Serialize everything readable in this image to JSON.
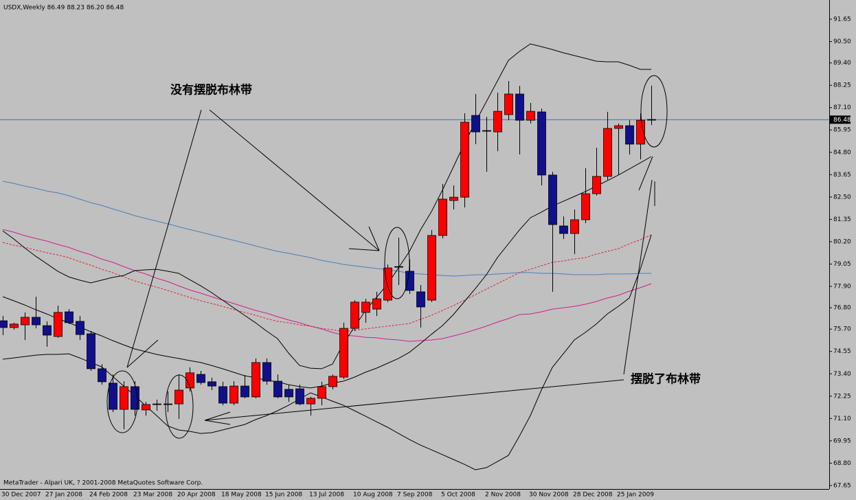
{
  "chart_data": {
    "type": "candlestick",
    "title": "USDX,Weekly  86.49 88.23 86.20 86.48",
    "footer": "MetaTrader - Alpari UK, ? 2001-2008 MetaQuotes Software Corp.",
    "annotations": [
      "没有摆脱布林带",
      "摆脱了布林带"
    ],
    "categories": [
      "30 Dec 2007",
      null,
      null,
      null,
      "27 Jan 2008",
      null,
      null,
      null,
      "24 Feb 2008",
      null,
      null,
      null,
      "23 Mar 2008",
      null,
      null,
      null,
      "20 Apr 2008",
      null,
      null,
      null,
      "18 May 2008",
      null,
      null,
      null,
      "15 Jun 2008",
      null,
      null,
      null,
      "13 Jul 2008",
      null,
      null,
      null,
      "10 Aug 2008",
      null,
      null,
      null,
      "7 Sep 2008",
      null,
      null,
      null,
      "5 Oct 2008",
      null,
      null,
      null,
      "2 Nov 2008",
      null,
      null,
      null,
      "30 Nov 2008",
      null,
      null,
      null,
      "28 Dec 2008",
      null,
      null,
      null,
      "25 Jan 2009",
      null,
      null,
      null
    ],
    "open": [
      76.13,
      75.78,
      75.92,
      76.31,
      75.88,
      75.32,
      76.59,
      76.1,
      75.46,
      73.66,
      72.92,
      71.57,
      72.74,
      71.54,
      71.82,
      71.85,
      71.85,
      72.67,
      73.37,
      72.99,
      72.74,
      71.89,
      72.77,
      72.21,
      73.98,
      73.02,
      72.6,
      72.63,
      71.85,
      72.14,
      72.74,
      73.23,
      75.74,
      76.56,
      76.73,
      77.19,
      78.92,
      78.68,
      77.62,
      77.19,
      80.52,
      82.32,
      82.49,
      86.7,
      85.92,
      85.85,
      86.74,
      87.8,
      86.45,
      86.88,
      83.63,
      81.01,
      80.62,
      81.33,
      82.67,
      83.56,
      86.03,
      86.17,
      85.22,
      86.49
    ],
    "high": [
      76.38,
      76.03,
      76.56,
      77.37,
      76.1,
      76.91,
      76.73,
      76.38,
      75.6,
      73.9,
      73.37,
      73.02,
      73.02,
      71.96,
      72.07,
      72.49,
      73.37,
      73.73,
      73.55,
      73.2,
      72.99,
      73.02,
      73.34,
      74.19,
      74.19,
      73.37,
      72.84,
      72.84,
      72.21,
      72.99,
      73.37,
      76.03,
      77.19,
      77.26,
      77.62,
      79.03,
      80.41,
      79.28,
      77.97,
      80.8,
      83.17,
      83.1,
      86.81,
      87.8,
      86.63,
      87.87,
      88.47,
      88.22,
      87.34,
      87.05,
      83.8,
      81.5,
      81.86,
      83.98,
      85.04,
      86.88,
      86.28,
      86.45,
      86.81,
      88.23
    ],
    "low": [
      75.39,
      75.67,
      75.14,
      75.74,
      74.79,
      75.25,
      75.96,
      75.14,
      73.55,
      72.84,
      71.43,
      70.55,
      71.25,
      71.25,
      71.5,
      71.43,
      71.08,
      72.49,
      72.84,
      72.56,
      71.78,
      71.78,
      72.14,
      72.14,
      72.84,
      72.14,
      71.96,
      71.78,
      71.25,
      71.78,
      72.6,
      73.13,
      75.6,
      76.03,
      76.38,
      77.09,
      77.97,
      77.51,
      75.78,
      77.09,
      80.37,
      81.86,
      81.96,
      85.22,
      83.8,
      84.86,
      86.45,
      84.69,
      86.28,
      83.1,
      77.62,
      80.34,
      79.56,
      81.15,
      82.57,
      83.38,
      83.63,
      84.69,
      84.44,
      86.2
    ],
    "close": [
      75.78,
      75.96,
      76.31,
      75.92,
      75.39,
      76.56,
      76.03,
      75.42,
      73.66,
      72.99,
      71.57,
      72.74,
      71.57,
      71.82,
      71.85,
      71.84,
      72.56,
      73.45,
      72.95,
      72.77,
      71.89,
      72.77,
      72.21,
      73.98,
      73.02,
      72.21,
      72.21,
      71.85,
      72.14,
      72.74,
      73.27,
      75.74,
      77.09,
      77.09,
      77.26,
      78.85,
      78.89,
      77.69,
      76.84,
      80.52,
      82.39,
      82.49,
      86.35,
      85.85,
      85.89,
      86.91,
      87.8,
      86.45,
      86.91,
      83.63,
      81.08,
      80.62,
      81.33,
      82.67,
      83.56,
      86.03,
      86.17,
      85.22,
      86.45,
      86.48
    ],
    "up_color": "#ff0000",
    "down_color": "#10108c",
    "indicators": [
      {
        "color": "#4a7fb5",
        "dashed": false,
        "values": [
          83.31,
          83.2,
          83.06,
          82.95,
          82.81,
          82.71,
          82.57,
          82.39,
          82.21,
          82.07,
          81.89,
          81.72,
          81.54,
          81.4,
          81.26,
          81.12,
          80.97,
          80.83,
          80.69,
          80.55,
          80.41,
          80.27,
          80.13,
          79.98,
          79.84,
          79.7,
          79.6,
          79.49,
          79.38,
          79.24,
          79.14,
          79.03,
          78.96,
          78.89,
          78.82,
          78.75,
          78.68,
          78.57,
          78.54,
          78.5,
          78.46,
          78.43,
          78.46,
          78.5,
          78.5,
          78.54,
          78.57,
          78.61,
          78.61,
          78.57,
          78.57,
          78.54,
          78.5,
          78.5,
          78.5,
          78.54,
          78.54,
          78.54,
          78.57,
          78.57
        ]
      },
      {
        "color": "#d0208a",
        "dashed": false,
        "values": [
          80.83,
          80.69,
          80.51,
          80.37,
          80.23,
          80.06,
          79.91,
          79.7,
          79.53,
          79.31,
          79.14,
          78.92,
          78.71,
          78.54,
          78.32,
          78.15,
          77.93,
          77.72,
          77.55,
          77.37,
          77.19,
          77.02,
          76.84,
          76.66,
          76.52,
          76.34,
          76.17,
          76.03,
          75.85,
          75.71,
          75.53,
          75.39,
          75.35,
          75.28,
          75.25,
          75.18,
          75.14,
          75.07,
          75.11,
          75.14,
          75.21,
          75.35,
          75.5,
          75.67,
          75.85,
          76.06,
          76.24,
          76.45,
          76.48,
          76.59,
          76.73,
          76.8,
          76.87,
          76.98,
          77.12,
          77.3,
          77.44,
          77.65,
          77.83,
          78.04
        ]
      },
      {
        "color": "#e0203a",
        "dashed": true,
        "values": [
          80.16,
          80.02,
          79.91,
          79.77,
          79.63,
          79.52,
          79.38,
          79.17,
          78.99,
          78.78,
          78.61,
          78.39,
          78.18,
          78.01,
          77.86,
          77.69,
          77.51,
          77.33,
          77.16,
          77.02,
          76.87,
          76.71,
          76.56,
          76.41,
          76.24,
          76.1,
          76.03,
          75.92,
          75.85,
          75.74,
          75.67,
          75.57,
          75.64,
          75.71,
          75.78,
          75.85,
          75.92,
          75.99,
          76.2,
          76.41,
          76.66,
          76.91,
          77.19,
          77.47,
          77.76,
          78.04,
          78.32,
          78.61,
          78.78,
          78.96,
          79.14,
          79.21,
          79.31,
          79.38,
          79.56,
          79.7,
          79.84,
          80.09,
          80.3,
          80.55
        ]
      },
      {
        "color": "#000000",
        "dashed": false,
        "values": [
          80.76,
          80.34,
          79.88,
          79.45,
          79.07,
          78.68,
          78.39,
          78.22,
          78.08,
          78.22,
          78.36,
          78.46,
          78.71,
          78.75,
          78.78,
          78.68,
          78.57,
          78.25,
          77.93,
          77.58,
          77.19,
          76.8,
          76.41,
          76.03,
          75.6,
          75.21,
          74.47,
          73.83,
          73.69,
          73.66,
          73.9,
          74.96,
          75.81,
          76.66,
          77.33,
          78.01,
          78.85,
          79.7,
          80.8,
          81.75,
          82.85,
          84.05,
          85.25,
          86.35,
          87.41,
          88.47,
          89.53,
          89.99,
          90.38,
          90.24,
          90.09,
          89.92,
          89.78,
          89.64,
          89.49,
          89.46,
          89.46,
          89.28,
          89.07,
          89.07
        ]
      },
      {
        "color": "#000000",
        "dashed": false,
        "values": [
          77.37,
          77.16,
          76.94,
          76.7,
          76.48,
          76.24,
          76.03,
          75.81,
          75.57,
          75.35,
          75.11,
          74.89,
          74.68,
          74.54,
          74.4,
          74.29,
          74.19,
          74.08,
          73.98,
          73.83,
          73.66,
          73.48,
          73.3,
          73.2,
          73.06,
          72.99,
          72.84,
          72.74,
          72.67,
          72.77,
          72.92,
          73.02,
          73.23,
          73.48,
          73.69,
          73.94,
          74.19,
          74.51,
          74.96,
          75.43,
          75.88,
          76.45,
          77.12,
          77.79,
          78.5,
          79.38,
          80.09,
          80.8,
          81.43,
          81.72,
          82.04,
          82.28,
          82.53,
          82.78,
          83.06,
          83.34,
          83.63,
          83.94,
          84.26,
          84.58
        ]
      },
      {
        "color": "#000000",
        "dashed": false,
        "values": [
          74.15,
          74.22,
          74.29,
          74.36,
          74.4,
          74.4,
          74.43,
          74.22,
          73.98,
          73.76,
          73.27,
          72.77,
          72.28,
          71.75,
          71.25,
          70.72,
          70.51,
          70.44,
          70.33,
          70.37,
          70.51,
          70.65,
          70.79,
          71.04,
          71.25,
          71.5,
          71.78,
          72.1,
          72.42,
          72.21,
          71.99,
          71.78,
          71.5,
          71.22,
          70.93,
          70.65,
          70.33,
          70.02,
          69.73,
          69.49,
          69.24,
          68.99,
          68.74,
          68.46,
          68.57,
          68.88,
          69.2,
          70.19,
          71.25,
          72.56,
          73.73,
          74.43,
          75.14,
          75.53,
          75.96,
          76.48,
          76.87,
          77.3,
          78.78,
          80.55
        ]
      }
    ],
    "current_price": 86.48,
    "current_price_color": "#4a6fa5",
    "ylim": [
      67.47,
      92.64
    ],
    "yticks": [
      91.65,
      {
        "value": 90.5,
        "label": "90.50"
      },
      {
        "value": 89.4,
        "label": "89.40"
      },
      88.25,
      {
        "value": 87.1,
        "label": "87.10"
      },
      85.95,
      {
        "value": 84.8,
        "label": "84.80"
      },
      83.65,
      {
        "value": 82.5,
        "label": "82.50"
      },
      81.35,
      {
        "value": 80.2,
        "label": "80.20"
      },
      79.05,
      {
        "value": 77.9,
        "label": "77.90"
      },
      {
        "value": 76.8,
        "label": "76.80"
      },
      {
        "value": 75.7,
        "label": "75.70"
      },
      74.55,
      {
        "value": 73.4,
        "label": "73.40"
      },
      72.25,
      {
        "value": 71.1,
        "label": "71.10"
      },
      69.95,
      {
        "value": 68.8,
        "label": "68.80"
      },
      67.65
    ],
    "grid": false
  }
}
